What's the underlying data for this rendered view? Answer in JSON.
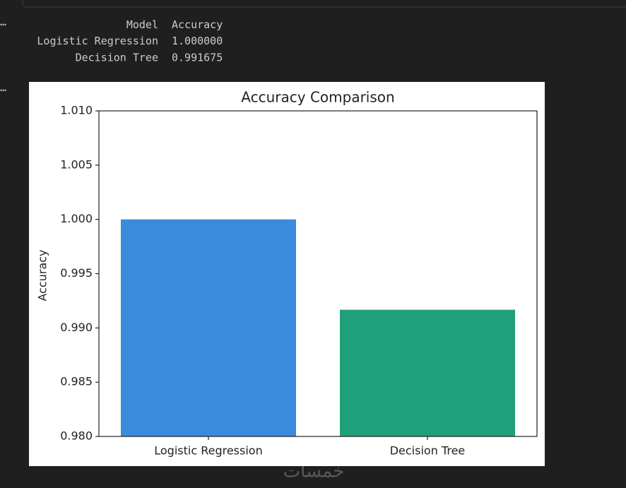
{
  "output_markers": [
    "…",
    "…"
  ],
  "table": {
    "columns": [
      "Model",
      "Accuracy"
    ],
    "rows": [
      [
        "Logistic Regression",
        "1.000000"
      ],
      [
        "Decision Tree",
        "0.991675"
      ]
    ]
  },
  "chart_data": {
    "type": "bar",
    "title": "Accuracy Comparison",
    "y_label": "Accuracy",
    "categories": [
      "Logistic Regression",
      "Decision Tree"
    ],
    "values": [
      1.0,
      0.991675
    ],
    "colors": [
      "#3a8bdc",
      "#1fa07a"
    ],
    "ylim": [
      0.98,
      1.01
    ],
    "yticks": [
      {
        "value": 0.98,
        "label": "0.980"
      },
      0.985,
      {
        "value": 0.99,
        "label": "0.990"
      },
      0.995,
      {
        "value": 1.0,
        "label": "1.000"
      },
      1.005,
      {
        "value": 1.01,
        "label": "1.010"
      }
    ]
  },
  "watermark": "خمسات"
}
